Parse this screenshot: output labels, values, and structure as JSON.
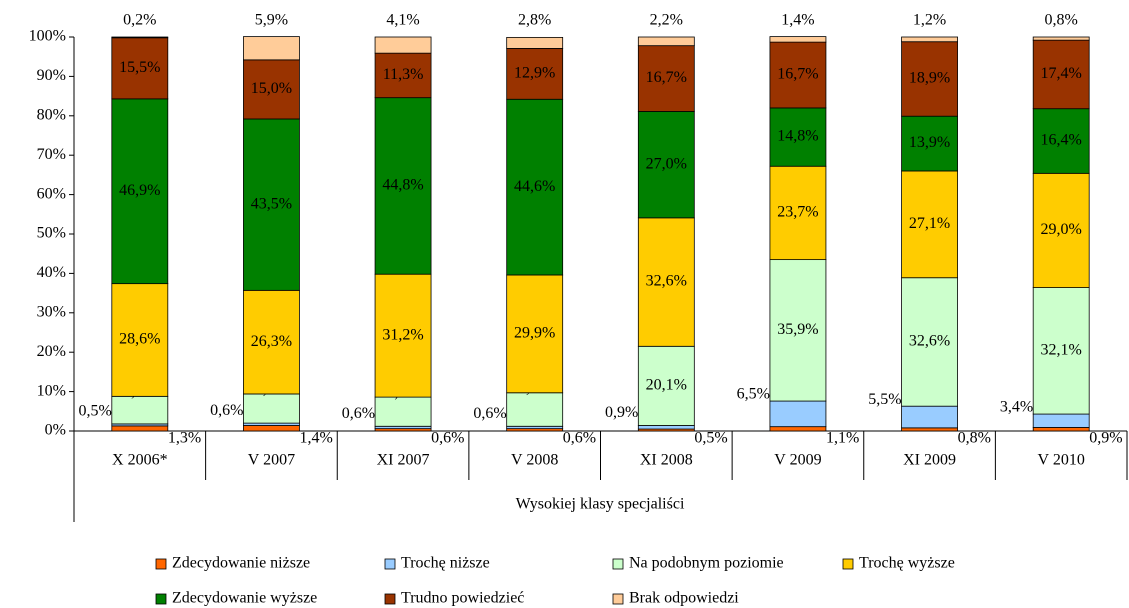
{
  "chart_data": {
    "type": "stacked_bar",
    "xlabel": "Wysokiej klasy specjaliści",
    "categories": [
      "X 2006*",
      "V 2007",
      "XI 2007",
      "V 2008",
      "XI 2008",
      "V 2009",
      "XI 2009",
      "V 2010"
    ],
    "ylim": [
      0,
      100
    ],
    "yticks": [
      {
        "value": 0,
        "label": "0%"
      },
      {
        "value": 10,
        "label": "10%"
      },
      {
        "value": 20,
        "label": "20%"
      },
      {
        "value": 30,
        "label": "30%"
      },
      {
        "value": 40,
        "label": "40%"
      },
      {
        "value": 50,
        "label": "50%"
      },
      {
        "value": 60,
        "label": "60%"
      },
      {
        "value": 70,
        "label": "70%"
      },
      {
        "value": 80,
        "label": "80%"
      },
      {
        "value": 90,
        "label": "90%"
      },
      {
        "value": 100,
        "label": "100%"
      }
    ],
    "series": [
      {
        "name": "Zdecydowanie niższe",
        "color": "#ff6600",
        "values": [
          1.3,
          1.4,
          0.6,
          0.6,
          0.5,
          1.1,
          0.8,
          0.9
        ],
        "value_labels": [
          "1,3%",
          "1,4%",
          "0,6%",
          "0,6%",
          "0,5%",
          "1,1%",
          "0,8%",
          "0,9%"
        ]
      },
      {
        "name": "Trochę niższe",
        "color": "#99ccff",
        "values": [
          0.5,
          0.6,
          0.6,
          0.6,
          0.9,
          6.5,
          5.5,
          3.4
        ],
        "value_labels": [
          "0,5%",
          "0,6%",
          "0,6%",
          "0,6%",
          "0,9%",
          "6,5%",
          "5,5%",
          "3,4%"
        ]
      },
      {
        "name": "Na podobnym poziomie",
        "color": "#ccffcc",
        "values": [
          7.0,
          7.4,
          7.4,
          8.5,
          20.1,
          35.9,
          32.6,
          32.1
        ],
        "value_labels": [
          "7,0%",
          "7,4%",
          "7,4%",
          "8,5%",
          "20,1%",
          "35,9%",
          "32,6%",
          "32,1%"
        ]
      },
      {
        "name": "Trochę wyższe",
        "color": "#ffcc00",
        "values": [
          28.6,
          26.3,
          31.2,
          29.9,
          32.6,
          23.7,
          27.1,
          29.0
        ],
        "value_labels": [
          "28,6%",
          "26,3%",
          "31,2%",
          "29,9%",
          "32,6%",
          "23,7%",
          "27,1%",
          "29,0%"
        ]
      },
      {
        "name": "Zdecydowanie wyższe",
        "color": "#008000",
        "values": [
          46.9,
          43.5,
          44.8,
          44.6,
          27.0,
          14.8,
          13.9,
          16.4
        ],
        "value_labels": [
          "46,9%",
          "43,5%",
          "44,8%",
          "44,6%",
          "27,0%",
          "14,8%",
          "13,9%",
          "16,4%"
        ]
      },
      {
        "name": "Trudno powiedzieć",
        "color": "#993300",
        "values": [
          15.5,
          15.0,
          11.3,
          12.9,
          16.7,
          16.7,
          18.9,
          17.4
        ],
        "value_labels": [
          "15,5%",
          "15,0%",
          "11,3%",
          "12,9%",
          "16,7%",
          "16,7%",
          "18,9%",
          "17,4%"
        ]
      },
      {
        "name": "Brak odpowiedzi",
        "color": "#ffcc99",
        "values": [
          0.2,
          5.9,
          4.1,
          2.8,
          2.2,
          1.4,
          1.2,
          0.8
        ],
        "value_labels": [
          "0,2%",
          "5,9%",
          "4,1%",
          "2,8%",
          "2,2%",
          "1,4%",
          "1,2%",
          "0,8%"
        ]
      }
    ]
  }
}
